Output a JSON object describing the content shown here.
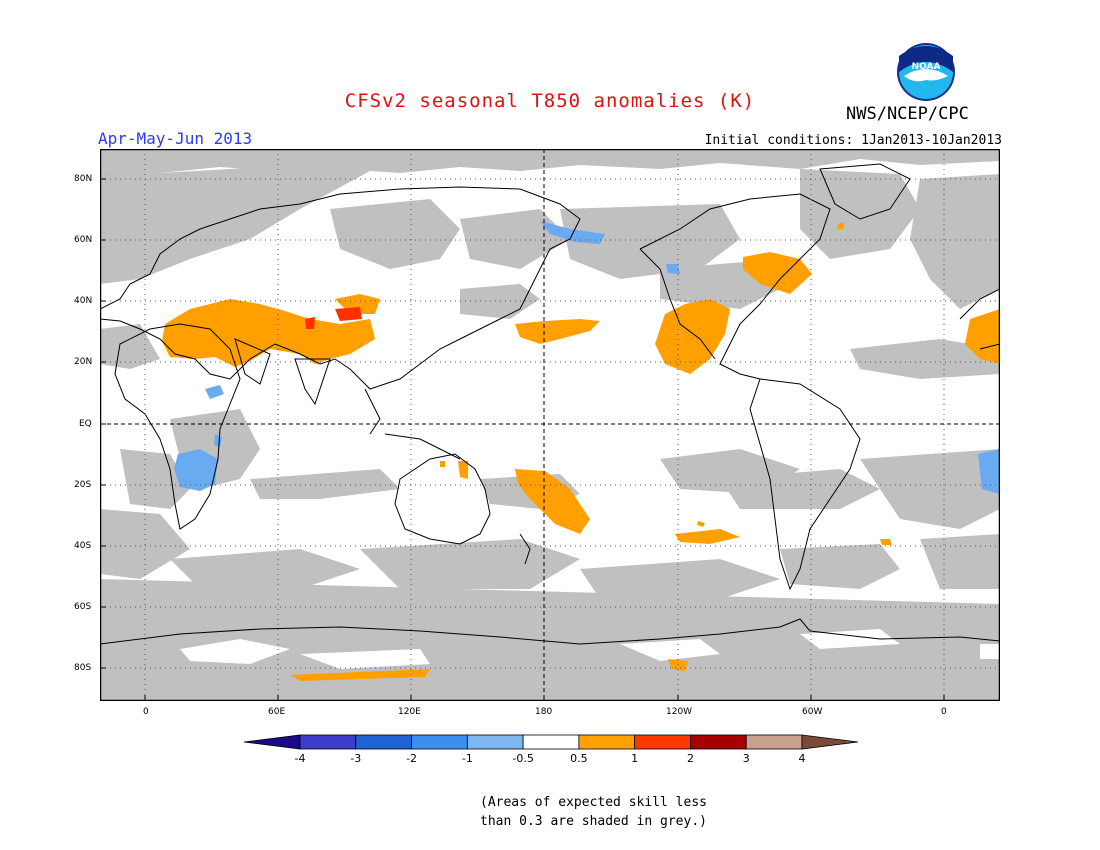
{
  "title": "CFSv2 seasonal T850 anomalies (K)",
  "organization": "NWS/NCEP/CPC",
  "logo_text": "NOAA",
  "period": "Apr-May-Jun 2013",
  "initial_conditions": "Initial conditions: 1Jan2013-10Jan2013",
  "lat_labels": [
    "80N",
    "60N",
    "40N",
    "20N",
    "EQ",
    "20S",
    "40S",
    "60S",
    "80S"
  ],
  "lon_labels": [
    "0",
    "60E",
    "120E",
    "180",
    "120W",
    "60W",
    "0"
  ],
  "legend": {
    "labels": [
      "-4",
      "-3",
      "-2",
      "-1",
      "-0.5",
      "0.5",
      "1",
      "2",
      "3",
      "4"
    ],
    "colors": [
      "#1a0a8a",
      "#3c3ccf",
      "#1f63d6",
      "#3c8ff0",
      "#7db8f2",
      "#ffffff",
      "#ff9f00",
      "#ff3800",
      "#a80000",
      "#c8a08c",
      "#7a4a3a"
    ]
  },
  "note_lines": [
    "(Areas of expected skill less",
    "than 0.3 are shaded in grey.)"
  ],
  "colors": {
    "title": "#e01010",
    "period": "#2a3aff",
    "skill_grey": "#c0c0c0",
    "warm": "#ffa000",
    "cool": "#6aaaf0",
    "hot": "#ff3000"
  }
}
